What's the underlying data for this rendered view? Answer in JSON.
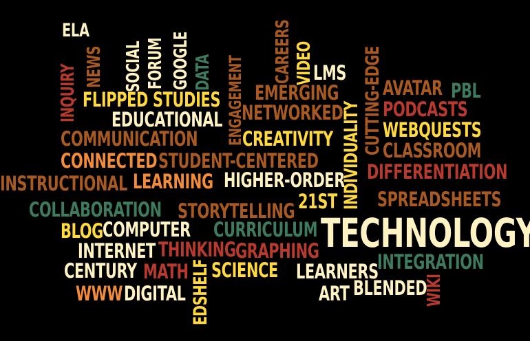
{
  "palette": {
    "background": "#000000",
    "cream": "#FFF3C4",
    "yellow": "#FFD93D",
    "orange": "#F28C3A",
    "brown": "#A85A22",
    "red": "#B83A2E",
    "green": "#3D7A5E"
  },
  "words": [
    {
      "text": "TECHNOLOGY",
      "color": "cream"
    },
    {
      "text": "ELA",
      "color": "cream"
    },
    {
      "text": "SOCIAL",
      "color": "cream"
    },
    {
      "text": "FORUM",
      "color": "cream"
    },
    {
      "text": "GOOGLE",
      "color": "cream"
    },
    {
      "text": "DATA",
      "color": "green"
    },
    {
      "text": "NEWS",
      "color": "brown"
    },
    {
      "text": "INQUIRY",
      "color": "red"
    },
    {
      "text": "ENGAGEMENT",
      "color": "brown"
    },
    {
      "text": "CAREERS",
      "color": "brown"
    },
    {
      "text": "VIDEO",
      "color": "yellow"
    },
    {
      "text": "LMS",
      "color": "cream"
    },
    {
      "text": "FLIPPED",
      "color": "yellow"
    },
    {
      "text": "STUDIES",
      "color": "yellow"
    },
    {
      "text": "EMERGING",
      "color": "brown"
    },
    {
      "text": "INDIVIDUALITY",
      "color": "yellow"
    },
    {
      "text": "CUTTING-EDGE",
      "color": "brown"
    },
    {
      "text": "AVATAR",
      "color": "brown"
    },
    {
      "text": "PBL",
      "color": "green"
    },
    {
      "text": "NETWORKED",
      "color": "brown"
    },
    {
      "text": "PODCASTS",
      "color": "red"
    },
    {
      "text": "EDUCATIONAL",
      "color": "cream"
    },
    {
      "text": "WEBQUESTS",
      "color": "yellow"
    },
    {
      "text": "COMMUNICATION",
      "color": "brown"
    },
    {
      "text": "CREATIVITY",
      "color": "yellow"
    },
    {
      "text": "CLASSROOM",
      "color": "brown"
    },
    {
      "text": "CONNECTED",
      "color": "orange"
    },
    {
      "text": "STUDENT-CENTERED",
      "color": "brown"
    },
    {
      "text": "DIFFERENTIATION",
      "color": "red"
    },
    {
      "text": "INSTRUCTIONAL",
      "color": "brown"
    },
    {
      "text": "LEARNING",
      "color": "orange"
    },
    {
      "text": "HIGHER-ORDER",
      "color": "cream"
    },
    {
      "text": "SPREADSHEETS",
      "color": "brown"
    },
    {
      "text": "21ST",
      "color": "yellow"
    },
    {
      "text": "COLLABORATION",
      "color": "green"
    },
    {
      "text": "STORYTELLING",
      "color": "brown"
    },
    {
      "text": "BLOG",
      "color": "yellow"
    },
    {
      "text": "COMPUTER",
      "color": "cream"
    },
    {
      "text": "CURRICULUM",
      "color": "green"
    },
    {
      "text": "INTERNET",
      "color": "cream"
    },
    {
      "text": "THINKING",
      "color": "red"
    },
    {
      "text": "GRAPHING",
      "color": "red"
    },
    {
      "text": "CENTURY",
      "color": "cream"
    },
    {
      "text": "MATH",
      "color": "red"
    },
    {
      "text": "EDSHELF",
      "color": "yellow"
    },
    {
      "text": "SCIENCE",
      "color": "yellow"
    },
    {
      "text": "LEARNERS",
      "color": "cream"
    },
    {
      "text": "INTEGRATION",
      "color": "green"
    },
    {
      "text": "WWW",
      "color": "orange"
    },
    {
      "text": "DIGITAL",
      "color": "cream"
    },
    {
      "text": "ART",
      "color": "cream"
    },
    {
      "text": "BLENDED",
      "color": "cream"
    },
    {
      "text": "WIKI",
      "color": "red"
    }
  ]
}
